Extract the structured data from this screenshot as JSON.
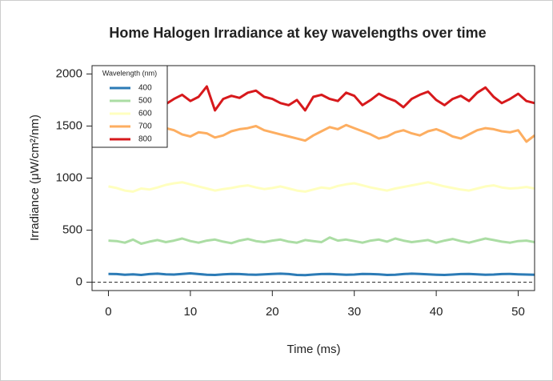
{
  "chart_data": {
    "type": "line",
    "title": "Home Halogen Irradiance at key wavelengths over time",
    "xlabel": "Time (ms)",
    "ylabel": "Irradiance (μW/cm²/nm)",
    "legend_title": "Wavelength (nm)",
    "legend": "top-left",
    "hline": 0,
    "xlim": [
      -2,
      52
    ],
    "ylim": [
      -80,
      2080
    ],
    "xticks": [
      0,
      10,
      20,
      30,
      40,
      50
    ],
    "yticks": [
      0,
      500,
      1000,
      1500,
      2000
    ],
    "x": [
      0,
      1,
      2,
      3,
      4,
      5,
      6,
      7,
      8,
      9,
      10,
      11,
      12,
      13,
      14,
      15,
      16,
      17,
      18,
      19,
      20,
      21,
      22,
      23,
      24,
      25,
      26,
      27,
      28,
      29,
      30,
      31,
      32,
      33,
      34,
      35,
      36,
      37,
      38,
      39,
      40,
      41,
      42,
      43,
      44,
      45,
      46,
      47,
      48,
      49,
      50,
      51,
      52
    ],
    "series": [
      {
        "name": "400",
        "color": "#2c7bb6",
        "values": [
          80,
          78,
          72,
          75,
          70,
          78,
          82,
          76,
          74,
          80,
          85,
          78,
          72,
          70,
          76,
          80,
          78,
          74,
          72,
          76,
          80,
          82,
          78,
          70,
          68,
          74,
          78,
          80,
          76,
          72,
          74,
          80,
          78,
          76,
          70,
          72,
          78,
          82,
          80,
          76,
          72,
          70,
          74,
          78,
          80,
          76,
          72,
          74,
          78,
          80,
          76,
          74,
          72
        ]
      },
      {
        "name": "500",
        "color": "#abdda4",
        "values": [
          400,
          395,
          380,
          410,
          370,
          390,
          405,
          385,
          400,
          420,
          395,
          380,
          400,
          410,
          390,
          375,
          400,
          415,
          395,
          385,
          400,
          410,
          390,
          380,
          405,
          395,
          385,
          430,
          400,
          410,
          395,
          380,
          400,
          410,
          390,
          420,
          400,
          385,
          395,
          405,
          380,
          400,
          415,
          395,
          380,
          400,
          420,
          405,
          390,
          380,
          395,
          400,
          385
        ]
      },
      {
        "name": "600",
        "color": "#ffffbf",
        "values": [
          920,
          905,
          880,
          870,
          900,
          890,
          910,
          935,
          950,
          960,
          940,
          920,
          900,
          880,
          895,
          905,
          920,
          930,
          910,
          895,
          905,
          920,
          900,
          880,
          870,
          890,
          910,
          900,
          925,
          940,
          950,
          930,
          910,
          895,
          880,
          900,
          915,
          930,
          945,
          960,
          940,
          920,
          905,
          890,
          880,
          900,
          920,
          930,
          910,
          900,
          905,
          915,
          900
        ]
      },
      {
        "name": "700",
        "color": "#fdae61",
        "values": [
          1440,
          1420,
          1390,
          1470,
          1430,
          1410,
          1450,
          1480,
          1460,
          1420,
          1400,
          1440,
          1430,
          1390,
          1410,
          1450,
          1470,
          1480,
          1500,
          1460,
          1440,
          1420,
          1400,
          1380,
          1360,
          1410,
          1450,
          1490,
          1470,
          1510,
          1480,
          1450,
          1420,
          1380,
          1400,
          1440,
          1460,
          1430,
          1410,
          1450,
          1470,
          1440,
          1400,
          1380,
          1420,
          1460,
          1480,
          1470,
          1450,
          1440,
          1460,
          1350,
          1410
        ]
      },
      {
        "name": "800",
        "color": "#d7191c",
        "values": [
          1790,
          1750,
          1720,
          1800,
          1780,
          1750,
          1830,
          1710,
          1760,
          1800,
          1740,
          1780,
          1880,
          1650,
          1760,
          1790,
          1770,
          1820,
          1840,
          1780,
          1760,
          1720,
          1700,
          1750,
          1650,
          1780,
          1800,
          1760,
          1740,
          1820,
          1790,
          1700,
          1750,
          1810,
          1770,
          1740,
          1680,
          1760,
          1800,
          1830,
          1750,
          1700,
          1760,
          1790,
          1740,
          1820,
          1870,
          1780,
          1720,
          1760,
          1810,
          1740,
          1720
        ]
      }
    ]
  }
}
